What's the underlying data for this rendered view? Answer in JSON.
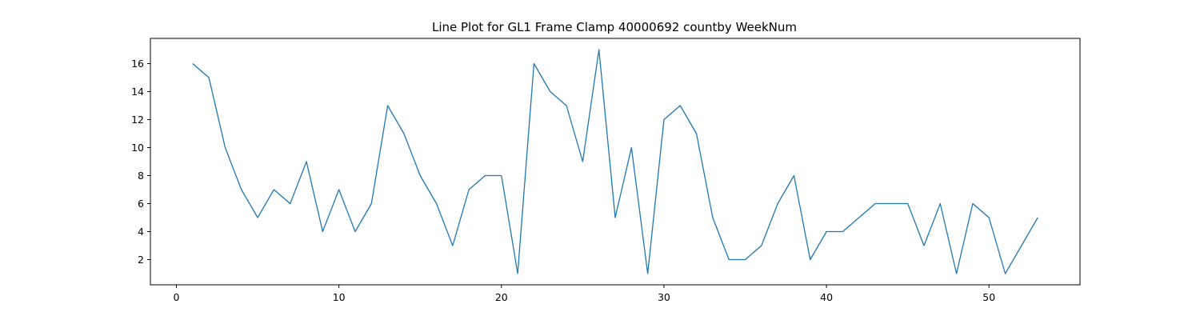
{
  "chart_data": {
    "type": "line",
    "title": "Line Plot for GL1 Frame Clamp 40000692 countby WeekNum",
    "xlabel": "",
    "ylabel": "",
    "xlim": [
      -1.6,
      55.6
    ],
    "ylim": [
      0.2,
      17.8
    ],
    "xticks": [
      0,
      10,
      20,
      30,
      40,
      50
    ],
    "yticks": [
      2,
      4,
      6,
      8,
      10,
      12,
      14,
      16
    ],
    "grid": false,
    "legend": false,
    "series": [
      {
        "color": "#1f77b4",
        "x": [
          1,
          2,
          3,
          4,
          5,
          6,
          7,
          8,
          9,
          10,
          11,
          12,
          13,
          14,
          15,
          16,
          17,
          18,
          19,
          20,
          21,
          22,
          23,
          24,
          25,
          26,
          27,
          28,
          29,
          30,
          31,
          32,
          33,
          34,
          35,
          36,
          37,
          38,
          39,
          40,
          41,
          42,
          43,
          44,
          45,
          46,
          47,
          48,
          49,
          50,
          51,
          52,
          53
        ],
        "y": [
          16,
          15,
          10,
          7,
          5,
          7,
          6,
          9,
          4,
          7,
          4,
          6,
          13,
          11,
          8,
          6,
          3,
          7,
          8,
          8,
          1,
          16,
          14,
          13,
          9,
          17,
          5,
          10,
          1,
          12,
          13,
          11,
          5,
          2,
          2,
          3,
          6,
          8,
          2,
          4,
          4,
          5,
          6,
          6,
          6,
          3,
          6,
          1,
          6,
          5,
          1,
          3,
          5
        ]
      }
    ]
  }
}
